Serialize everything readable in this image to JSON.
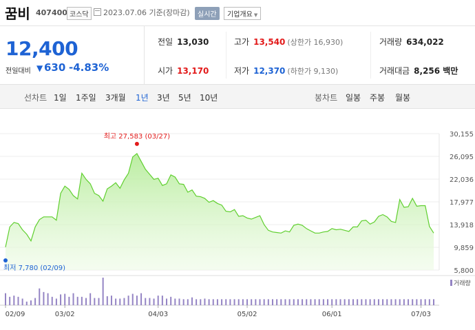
{
  "header": {
    "name": "꿈비",
    "code": "407400",
    "market": "코스닥",
    "date": "2023.07.06 기준(장마감)",
    "realtime": "실시간",
    "company": "기업개요"
  },
  "price": {
    "current": "12,400",
    "change_label": "전일대비",
    "change_arrow": "▼",
    "change_amount": "630",
    "change_pct": "-4.83%"
  },
  "stats": {
    "prev_close_label": "전일",
    "prev_close": "13,030",
    "high_label": "고가",
    "high": "13,540",
    "upper_limit": "(상한가 16,930)",
    "volume_label": "거래량",
    "volume": "634,022",
    "open_label": "시가",
    "open": "13,170",
    "low_label": "저가",
    "low": "12,370",
    "lower_limit": "(하한가 9,130)",
    "amount_label": "거래대금",
    "amount": "8,256 백만"
  },
  "periods": {
    "line_label": "선차트",
    "items": [
      "1일",
      "1주일",
      "3개월",
      "1년",
      "3년",
      "5년",
      "10년"
    ],
    "active": "1년",
    "candle_label": "봉차트",
    "candle_items": [
      "일봉",
      "주봉",
      "월봉"
    ]
  },
  "colors": {
    "up": "#e21a1a",
    "down": "#1e63d4",
    "line": "#5fcf2e",
    "volume": "#9484c4"
  },
  "chart_data": {
    "type": "area",
    "y_ticks": [
      "30,155",
      "26,095",
      "22,036",
      "17,977",
      "13,918",
      "9,859",
      "5,800"
    ],
    "ylim": [
      5800,
      30155
    ],
    "x_ticks": [
      "02/09",
      "03/02",
      "04/03",
      "05/02",
      "06/01",
      "07/03"
    ],
    "high_label": "최고 27,583 (03/27)",
    "low_label": "최저 7,780 (02/09)",
    "volume_legend": "거래량",
    "x": [
      "02/09",
      "02/10",
      "02/13",
      "02/14",
      "02/15",
      "02/16",
      "02/17",
      "02/20",
      "02/21",
      "02/22",
      "02/23",
      "02/24",
      "02/27",
      "02/28",
      "03/02",
      "03/03",
      "03/06",
      "03/07",
      "03/08",
      "03/09",
      "03/10",
      "03/13",
      "03/14",
      "03/15",
      "03/16",
      "03/17",
      "03/20",
      "03/21",
      "03/22",
      "03/23",
      "03/24",
      "03/27",
      "03/28",
      "03/29",
      "03/30",
      "03/31",
      "04/03",
      "04/04",
      "04/05",
      "04/06",
      "04/07",
      "04/10",
      "04/11",
      "04/12",
      "04/13",
      "04/14",
      "04/17",
      "04/18",
      "04/19",
      "04/20",
      "04/21",
      "04/24",
      "04/25",
      "04/26",
      "04/27",
      "04/28",
      "05/01",
      "05/02",
      "05/03",
      "05/04",
      "05/08",
      "05/09",
      "05/10",
      "05/11",
      "05/12",
      "05/15",
      "05/16",
      "05/17",
      "05/18",
      "05/19",
      "05/22",
      "05/23",
      "05/24",
      "05/25",
      "05/26",
      "05/30",
      "05/31",
      "06/01",
      "06/02",
      "06/05",
      "06/07",
      "06/08",
      "06/09",
      "06/12",
      "06/13",
      "06/14",
      "06/15",
      "06/16",
      "06/19",
      "06/20",
      "06/21",
      "06/22",
      "06/23",
      "06/26",
      "06/27",
      "06/28",
      "06/29",
      "06/30",
      "07/03",
      "07/04",
      "07/05",
      "07/06"
    ],
    "values": [
      9900,
      13500,
      14300,
      14100,
      13000,
      12200,
      11000,
      13500,
      14800,
      15300,
      15300,
      15300,
      14700,
      19500,
      20800,
      20200,
      19100,
      18500,
      23100,
      22000,
      21200,
      19500,
      19100,
      18100,
      20300,
      20800,
      21400,
      20400,
      21900,
      23100,
      26000,
      26600,
      25200,
      23800,
      22900,
      22000,
      22200,
      20900,
      21200,
      22800,
      22400,
      21200,
      21100,
      19700,
      20100,
      19000,
      18900,
      18600,
      17900,
      18200,
      17700,
      17400,
      16300,
      16200,
      16600,
      15400,
      15500,
      15100,
      14900,
      15200,
      15500,
      13900,
      12900,
      12600,
      12500,
      12400,
      12800,
      12600,
      13800,
      14000,
      13800,
      13200,
      12800,
      12400,
      12400,
      12600,
      12700,
      13200,
      13000,
      13100,
      12900,
      12700,
      13500,
      13500,
      14600,
      14700,
      14000,
      14400,
      15400,
      15700,
      15300,
      14500,
      14300,
      18400,
      17000,
      17100,
      18600,
      17200,
      17300,
      17300,
      13600,
      12400
    ],
    "volumes": [
      100,
      70,
      80,
      70,
      55,
      30,
      40,
      60,
      140,
      110,
      100,
      70,
      55,
      90,
      95,
      70,
      100,
      70,
      70,
      60,
      100,
      60,
      60,
      230,
      75,
      80,
      55,
      55,
      60,
      80,
      95,
      80,
      100,
      60,
      60,
      55,
      80,
      80,
      55,
      70,
      55,
      55,
      50,
      50,
      65,
      50,
      50,
      55,
      50,
      50,
      50,
      50,
      50,
      50,
      50,
      50,
      50,
      50,
      50,
      50,
      50,
      50,
      50,
      50,
      50,
      50,
      50,
      50,
      50,
      50,
      50,
      50,
      50,
      50,
      50,
      50,
      50,
      50,
      50,
      50,
      50,
      50,
      50,
      50,
      50,
      50,
      50,
      50,
      50,
      50,
      50,
      50,
      50,
      50,
      50,
      50,
      50,
      50,
      50,
      50,
      50,
      50
    ]
  }
}
